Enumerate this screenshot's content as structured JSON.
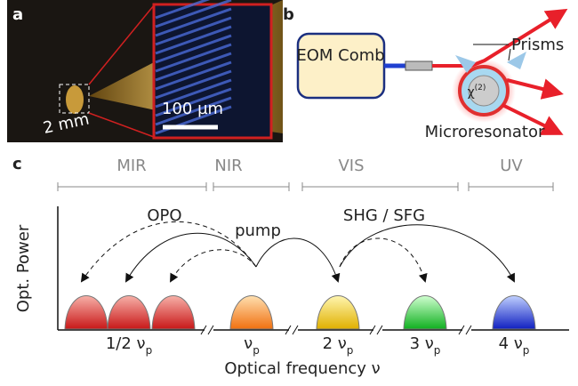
{
  "panel_a": {
    "label": "a",
    "scale_mm": "2 mm",
    "scale_um": "100 µm"
  },
  "panel_b": {
    "label": "b",
    "source": "EOM Comb",
    "prisms": "Prisms",
    "chi": {
      "text": "χ",
      "sup": "(2)"
    },
    "resonator": "Microresonator"
  },
  "panel_c": {
    "label": "c",
    "regions": [
      "MIR",
      "NIR",
      "VIS",
      "UV"
    ],
    "y_label": "Opt. Power",
    "x_label": "Optical frequency ν",
    "processes": [
      "OPO",
      "pump",
      "SHG / SFG"
    ],
    "peaks": [
      {
        "text": "1/2 ν",
        "sub": "p"
      },
      {
        "text": "ν",
        "sub": "p"
      },
      {
        "text": "2 ν",
        "sub": "p"
      },
      {
        "text": "3 ν",
        "sub": "p"
      },
      {
        "text": "4 ν",
        "sub": "p"
      }
    ]
  }
}
